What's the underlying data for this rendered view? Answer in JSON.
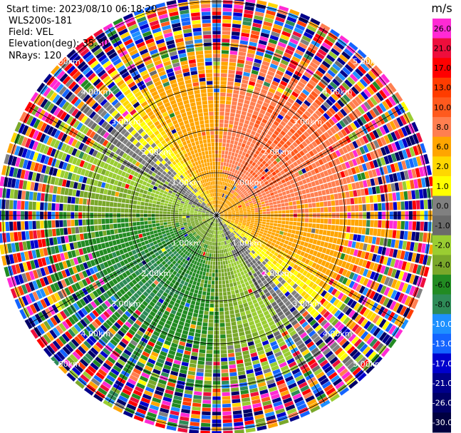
{
  "header": {
    "start_time": "Start time: 2023/08/10 06:18:20",
    "instrument": "WLS200s-181",
    "field": "Field: VEL",
    "elevation": "Elevation(deg): 35.30",
    "nrays": "NRays: 120"
  },
  "colorbar": {
    "unit": "m/s",
    "ticks": [
      "26.0",
      "21.0",
      "17.0",
      "13.0",
      "10.0",
      "8.0",
      "6.0",
      "2.0",
      "1.0",
      "0.0",
      "-1.0",
      "-2.0",
      "-4.0",
      "-6.0",
      "-8.0",
      "-10.0",
      "-13.0",
      "-17.0",
      "-21.0",
      "-26.0",
      "-30.0"
    ],
    "colors": [
      "#ff2ad4",
      "#ee0e3c",
      "#ff0000",
      "#ff3c00",
      "#ff5a1e",
      "#ff7f50",
      "#ffa500",
      "#ffd700",
      "#ffff00",
      "#808080",
      "#6b6b6b",
      "#9acd32",
      "#7aa82a",
      "#228b22",
      "#2e8b57",
      "#1e90ff",
      "#1464ff",
      "#0000cd",
      "#00008b",
      "#000066",
      "#000040"
    ]
  },
  "chart_data": {
    "type": "heatmap",
    "projection": "polar (PPI, radial velocity)",
    "field": "VEL",
    "units": "m/s",
    "nrays": 120,
    "range_rings_km": [
      1.0,
      2.0,
      3.0,
      4.0,
      5.0
    ],
    "range_ring_labels": [
      "1.00km",
      "2.00km",
      "3.00km",
      "4.00km",
      "5.00km"
    ],
    "spoke_angles_deg": [
      0,
      30,
      60,
      90,
      120,
      150,
      180,
      210,
      240,
      270,
      300,
      330
    ],
    "color_scale": {
      "min": -30.0,
      "max": 26.0,
      "boundaries": [
        26.0,
        21.0,
        17.0,
        13.0,
        10.0,
        8.0,
        6.0,
        2.0,
        1.0,
        0.0,
        -1.0,
        -2.0,
        -4.0,
        -6.0,
        -8.0,
        -10.0,
        -13.0,
        -17.0,
        -21.0,
        -26.0,
        -30.0
      ]
    },
    "pattern": {
      "positive_velocity_direction": "north-east",
      "negative_velocity_direction": "south-west",
      "peak_positive_ms": 8.0,
      "peak_negative_ms": -8.0,
      "noisy_beyond_km": 3.0
    }
  }
}
